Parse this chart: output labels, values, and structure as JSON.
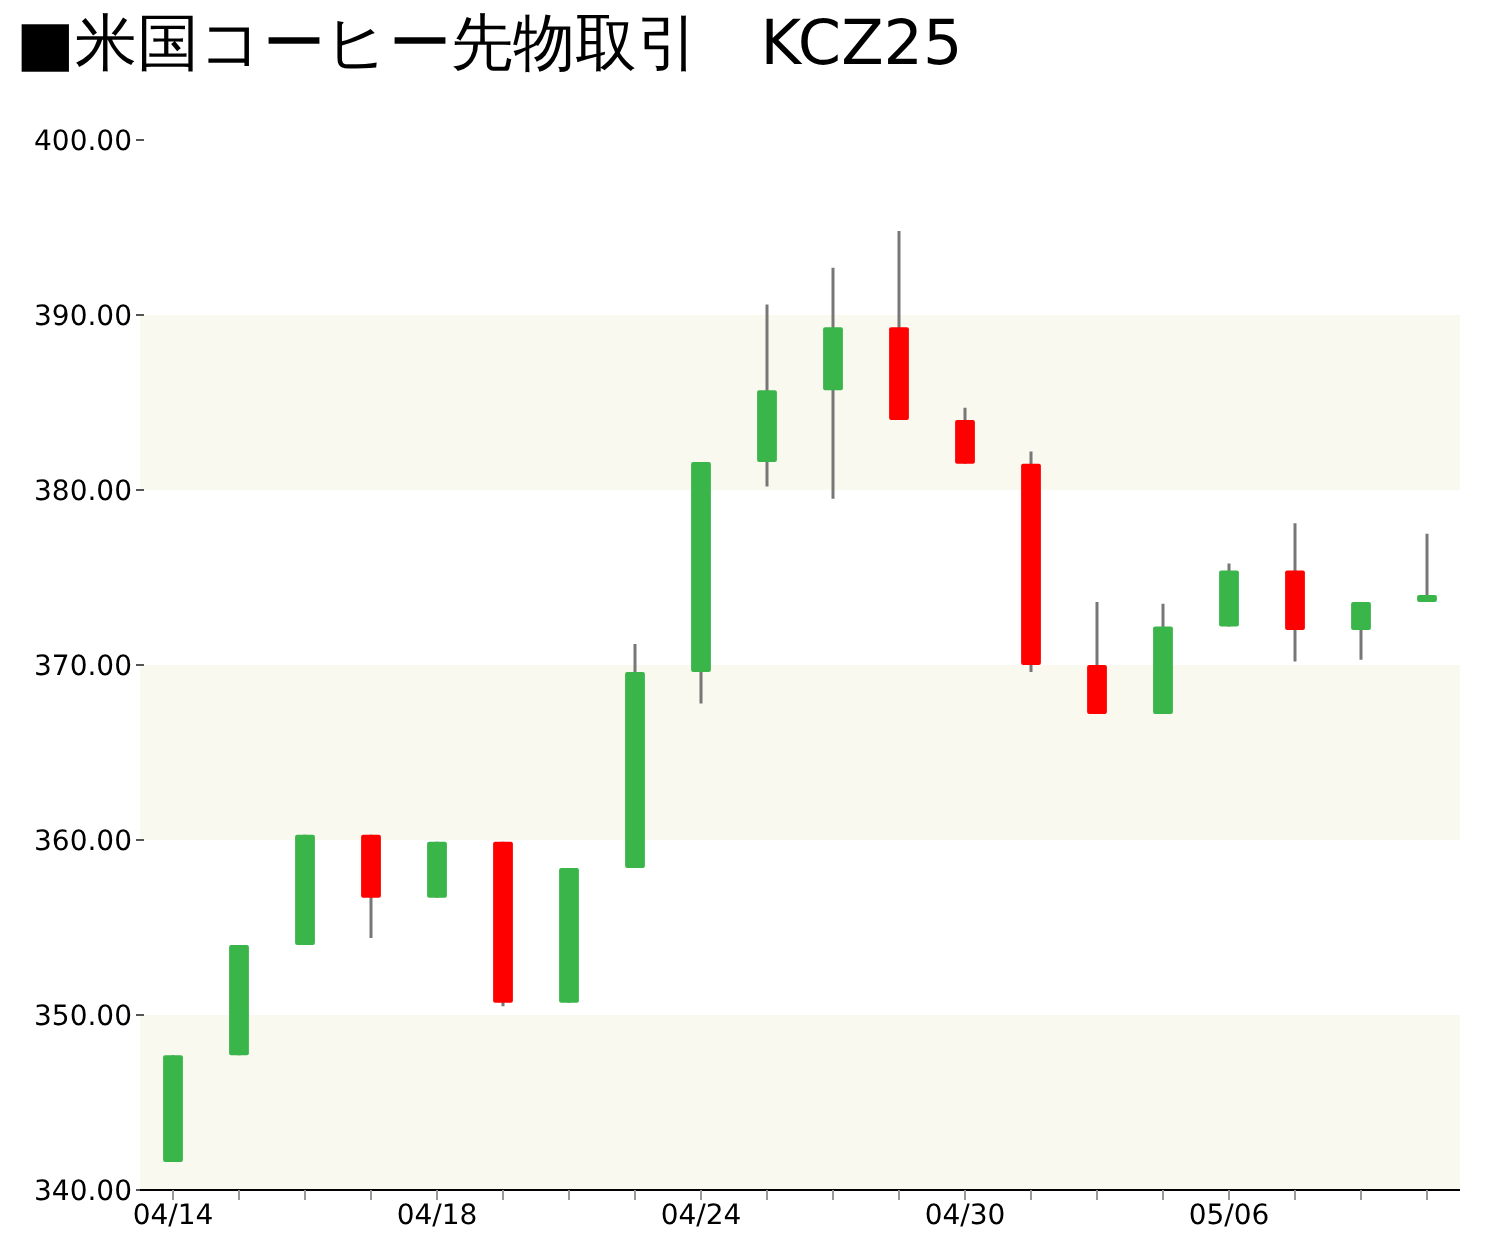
{
  "chart_data": {
    "type": "candlestick",
    "title": "■米国コーヒー先物取引　KCZ25",
    "categories": [
      "04/14",
      null,
      null,
      null,
      "04/18",
      null,
      null,
      null,
      "04/24",
      null,
      null,
      null,
      "04/30",
      null,
      null,
      null,
      "05/06",
      null,
      null,
      null
    ],
    "ohlc": [
      [
        341.6,
        347.7,
        341.6,
        347.7
      ],
      [
        347.7,
        354.0,
        347.7,
        354.0
      ],
      [
        354.0,
        360.3,
        354.0,
        360.3
      ],
      [
        360.3,
        360.3,
        354.4,
        356.7
      ],
      [
        356.7,
        359.9,
        356.7,
        359.9
      ],
      [
        359.9,
        359.9,
        350.5,
        350.7
      ],
      [
        350.7,
        358.4,
        350.7,
        358.4
      ],
      [
        358.4,
        371.2,
        358.4,
        369.6
      ],
      [
        369.6,
        381.6,
        367.8,
        381.6
      ],
      [
        381.6,
        390.6,
        380.2,
        385.7
      ],
      [
        385.7,
        392.7,
        379.5,
        389.3
      ],
      [
        389.3,
        394.8,
        384.0,
        384.0
      ],
      [
        384.0,
        384.7,
        381.5,
        381.5
      ],
      [
        381.5,
        382.2,
        369.6,
        370.0
      ],
      [
        370.0,
        373.6,
        367.2,
        367.2
      ],
      [
        367.2,
        373.5,
        367.2,
        372.2
      ],
      [
        372.2,
        375.8,
        372.2,
        375.4
      ],
      [
        375.4,
        378.1,
        370.2,
        372.0
      ],
      [
        372.0,
        373.6,
        370.3,
        373.6
      ],
      [
        373.6,
        377.5,
        373.6,
        374.0
      ]
    ],
    "colors": [
      "#39b54a",
      "#39b54a",
      "#39b54a",
      "#ff0000",
      "#39b54a",
      "#ff0000",
      "#39b54a",
      "#39b54a",
      "#39b54a",
      "#39b54a",
      "#39b54a",
      "#ff0000",
      "#ff0000",
      "#ff0000",
      "#ff0000",
      "#39b54a",
      "#39b54a",
      "#ff0000",
      "#39b54a",
      "#39b54a"
    ],
    "ylim": [
      340,
      400
    ],
    "yticks": [
      {
        "value": 340,
        "label": "340.00"
      },
      {
        "value": 350,
        "label": "350.00"
      },
      {
        "value": 360,
        "label": "360.00"
      },
      {
        "value": 370,
        "label": "370.00"
      },
      {
        "value": 380,
        "label": "380.00"
      },
      {
        "value": 390,
        "label": "390.00"
      },
      {
        "value": 400,
        "label": "400.00"
      }
    ],
    "bands": [
      {
        "axis": "y",
        "from": 340,
        "to": 350,
        "color": "#f9f9f0"
      },
      {
        "axis": "y",
        "from": 360,
        "to": 370,
        "color": "#f9f9f0"
      },
      {
        "axis": "y",
        "from": 380,
        "to": 390,
        "color": "#f9f9f0"
      }
    ]
  }
}
